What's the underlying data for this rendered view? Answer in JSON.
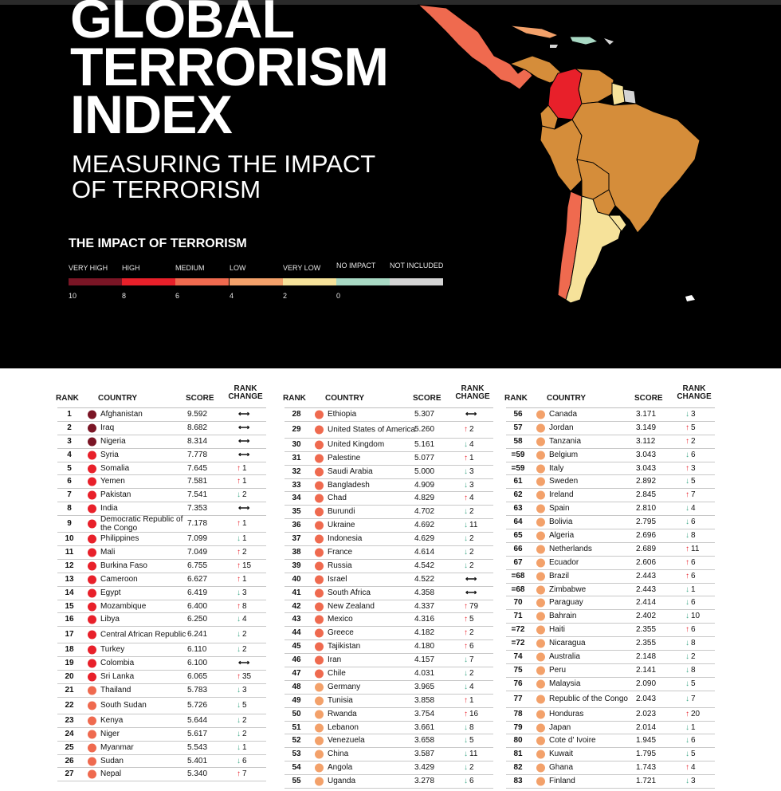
{
  "title_lines": [
    "GLOBAL",
    "TERRORISM",
    "INDEX"
  ],
  "subtitle_lines": [
    "MEASURING THE IMPACT",
    "OF TERRORISM"
  ],
  "legend": {
    "title": "THE IMPACT OF TERRORISM",
    "categories": [
      {
        "label": "VERY HIGH",
        "color": "#7a1525"
      },
      {
        "label": "HIGH",
        "color": "#e8202a"
      },
      {
        "label": "MEDIUM",
        "color": "#ef6a4f"
      },
      {
        "label": "LOW",
        "color": "#f3a16a"
      },
      {
        "label": "VERY LOW",
        "color": "#f6e29a"
      },
      {
        "label": "NO IMPACT",
        "color": "#a9d9c4"
      },
      {
        "label": "NOT INCLUDED",
        "color": "#d4d4d4"
      }
    ],
    "scale": [
      "10",
      "8",
      "6",
      "4",
      "2",
      "0"
    ]
  },
  "table_headers": {
    "rank": "RANK",
    "country": "COUNTRY",
    "score": "SCORE",
    "rank_change_1": "RANK",
    "rank_change_2": "CHANGE"
  },
  "columns": [
    [
      {
        "rank": "1",
        "country": "Afghanistan",
        "score": "9.592",
        "dir": "same",
        "change": ""
      },
      {
        "rank": "2",
        "country": "Iraq",
        "score": "8.682",
        "dir": "same",
        "change": ""
      },
      {
        "rank": "3",
        "country": "Nigeria",
        "score": "8.314",
        "dir": "same",
        "change": ""
      },
      {
        "rank": "4",
        "country": "Syria",
        "score": "7.778",
        "dir": "same",
        "change": ""
      },
      {
        "rank": "5",
        "country": "Somalia",
        "score": "7.645",
        "dir": "up",
        "change": "1"
      },
      {
        "rank": "6",
        "country": "Yemen",
        "score": "7.581",
        "dir": "up",
        "change": "1"
      },
      {
        "rank": "7",
        "country": "Pakistan",
        "score": "7.541",
        "dir": "down",
        "change": "2"
      },
      {
        "rank": "8",
        "country": "India",
        "score": "7.353",
        "dir": "same",
        "change": ""
      },
      {
        "rank": "9",
        "country": "Democratic Republic of the Congo",
        "score": "7.178",
        "dir": "up",
        "change": "1"
      },
      {
        "rank": "10",
        "country": "Philippines",
        "score": "7.099",
        "dir": "down",
        "change": "1"
      },
      {
        "rank": "11",
        "country": "Mali",
        "score": "7.049",
        "dir": "up",
        "change": "2"
      },
      {
        "rank": "12",
        "country": "Burkina Faso",
        "score": "6.755",
        "dir": "up",
        "change": "15"
      },
      {
        "rank": "13",
        "country": "Cameroon",
        "score": "6.627",
        "dir": "up",
        "change": "1"
      },
      {
        "rank": "14",
        "country": "Egypt",
        "score": "6.419",
        "dir": "down",
        "change": "3"
      },
      {
        "rank": "15",
        "country": "Mozambique",
        "score": "6.400",
        "dir": "up",
        "change": "8"
      },
      {
        "rank": "16",
        "country": "Libya",
        "score": "6.250",
        "dir": "down",
        "change": "4"
      },
      {
        "rank": "17",
        "country": "Central African Republic",
        "score": "6.241",
        "dir": "down",
        "change": "2"
      },
      {
        "rank": "18",
        "country": "Turkey",
        "score": "6.110",
        "dir": "down",
        "change": "2"
      },
      {
        "rank": "19",
        "country": "Colombia",
        "score": "6.100",
        "dir": "same",
        "change": ""
      },
      {
        "rank": "20",
        "country": "Sri Lanka",
        "score": "6.065",
        "dir": "up",
        "change": "35"
      },
      {
        "rank": "21",
        "country": "Thailand",
        "score": "5.783",
        "dir": "down",
        "change": "3"
      },
      {
        "rank": "22",
        "country": "South Sudan",
        "score": "5.726",
        "dir": "down",
        "change": "5"
      },
      {
        "rank": "23",
        "country": "Kenya",
        "score": "5.644",
        "dir": "down",
        "change": "2"
      },
      {
        "rank": "24",
        "country": "Niger",
        "score": "5.617",
        "dir": "down",
        "change": "2"
      },
      {
        "rank": "25",
        "country": "Myanmar",
        "score": "5.543",
        "dir": "down",
        "change": "1"
      },
      {
        "rank": "26",
        "country": "Sudan",
        "score": "5.401",
        "dir": "down",
        "change": "6"
      },
      {
        "rank": "27",
        "country": "Nepal",
        "score": "5.340",
        "dir": "up",
        "change": "7"
      }
    ],
    [
      {
        "rank": "28",
        "country": "Ethiopia",
        "score": "5.307",
        "dir": "same",
        "change": ""
      },
      {
        "rank": "29",
        "country": "United States of America",
        "score": "5.260",
        "dir": "up",
        "change": "2"
      },
      {
        "rank": "30",
        "country": "United Kingdom",
        "score": "5.161",
        "dir": "down",
        "change": "4"
      },
      {
        "rank": "31",
        "country": "Palestine",
        "score": "5.077",
        "dir": "up",
        "change": "1"
      },
      {
        "rank": "32",
        "country": "Saudi Arabia",
        "score": "5.000",
        "dir": "down",
        "change": "3"
      },
      {
        "rank": "33",
        "country": "Bangladesh",
        "score": "4.909",
        "dir": "down",
        "change": "3"
      },
      {
        "rank": "34",
        "country": "Chad",
        "score": "4.829",
        "dir": "up",
        "change": "4"
      },
      {
        "rank": "35",
        "country": "Burundi",
        "score": "4.702",
        "dir": "down",
        "change": "2"
      },
      {
        "rank": "36",
        "country": "Ukraine",
        "score": "4.692",
        "dir": "down",
        "change": "11"
      },
      {
        "rank": "37",
        "country": "Indonesia",
        "score": "4.629",
        "dir": "down",
        "change": "2"
      },
      {
        "rank": "38",
        "country": "France",
        "score": "4.614",
        "dir": "down",
        "change": "2"
      },
      {
        "rank": "39",
        "country": "Russia",
        "score": "4.542",
        "dir": "down",
        "change": "2"
      },
      {
        "rank": "40",
        "country": "Israel",
        "score": "4.522",
        "dir": "same",
        "change": ""
      },
      {
        "rank": "41",
        "country": "South Africa",
        "score": "4.358",
        "dir": "same",
        "change": ""
      },
      {
        "rank": "42",
        "country": "New Zealand",
        "score": "4.337",
        "dir": "up",
        "change": "79"
      },
      {
        "rank": "43",
        "country": "Mexico",
        "score": "4.316",
        "dir": "up",
        "change": "5"
      },
      {
        "rank": "44",
        "country": "Greece",
        "score": "4.182",
        "dir": "up",
        "change": "2"
      },
      {
        "rank": "45",
        "country": "Tajikistan",
        "score": "4.180",
        "dir": "up",
        "change": "6"
      },
      {
        "rank": "46",
        "country": "Iran",
        "score": "4.157",
        "dir": "down",
        "change": "7"
      },
      {
        "rank": "47",
        "country": "Chile",
        "score": "4.031",
        "dir": "down",
        "change": "2"
      },
      {
        "rank": "48",
        "country": "Germany",
        "score": "3.965",
        "dir": "down",
        "change": "4"
      },
      {
        "rank": "49",
        "country": "Tunisia",
        "score": "3.858",
        "dir": "up",
        "change": "1"
      },
      {
        "rank": "50",
        "country": "Rwanda",
        "score": "3.754",
        "dir": "up",
        "change": "16"
      },
      {
        "rank": "51",
        "country": "Lebanon",
        "score": "3.661",
        "dir": "down",
        "change": "8"
      },
      {
        "rank": "52",
        "country": "Venezuela",
        "score": "3.658",
        "dir": "down",
        "change": "5"
      },
      {
        "rank": "53",
        "country": "China",
        "score": "3.587",
        "dir": "down",
        "change": "11"
      },
      {
        "rank": "54",
        "country": "Angola",
        "score": "3.429",
        "dir": "down",
        "change": "2"
      },
      {
        "rank": "55",
        "country": "Uganda",
        "score": "3.278",
        "dir": "down",
        "change": "6"
      }
    ],
    [
      {
        "rank": "56",
        "country": "Canada",
        "score": "3.171",
        "dir": "down",
        "change": "3"
      },
      {
        "rank": "57",
        "country": "Jordan",
        "score": "3.149",
        "dir": "up",
        "change": "5"
      },
      {
        "rank": "58",
        "country": "Tanzania",
        "score": "3.112",
        "dir": "up",
        "change": "2"
      },
      {
        "rank": "=59",
        "country": "Belgium",
        "score": "3.043",
        "dir": "down",
        "change": "6"
      },
      {
        "rank": "=59",
        "country": "Italy",
        "score": "3.043",
        "dir": "up",
        "change": "3"
      },
      {
        "rank": "61",
        "country": "Sweden",
        "score": "2.892",
        "dir": "down",
        "change": "5"
      },
      {
        "rank": "62",
        "country": "Ireland",
        "score": "2.845",
        "dir": "up",
        "change": "7"
      },
      {
        "rank": "63",
        "country": "Spain",
        "score": "2.810",
        "dir": "down",
        "change": "4"
      },
      {
        "rank": "64",
        "country": "Bolivia",
        "score": "2.795",
        "dir": "down",
        "change": "6"
      },
      {
        "rank": "65",
        "country": "Algeria",
        "score": "2.696",
        "dir": "down",
        "change": "8"
      },
      {
        "rank": "66",
        "country": "Netherlands",
        "score": "2.689",
        "dir": "up",
        "change": "11"
      },
      {
        "rank": "67",
        "country": "Ecuador",
        "score": "2.606",
        "dir": "up",
        "change": "6"
      },
      {
        "rank": "=68",
        "country": "Brazil",
        "score": "2.443",
        "dir": "up",
        "change": "6"
      },
      {
        "rank": "=68",
        "country": "Zimbabwe",
        "score": "2.443",
        "dir": "down",
        "change": "1"
      },
      {
        "rank": "70",
        "country": "Paraguay",
        "score": "2.414",
        "dir": "down",
        "change": "6"
      },
      {
        "rank": "71",
        "country": "Bahrain",
        "score": "2.402",
        "dir": "down",
        "change": "10"
      },
      {
        "rank": "=72",
        "country": "Haiti",
        "score": "2.355",
        "dir": "up",
        "change": "6"
      },
      {
        "rank": "=72",
        "country": "Nicaragua",
        "score": "2.355",
        "dir": "down",
        "change": "8"
      },
      {
        "rank": "74",
        "country": "Australia",
        "score": "2.148",
        "dir": "down",
        "change": "2"
      },
      {
        "rank": "75",
        "country": "Peru",
        "score": "2.141",
        "dir": "down",
        "change": "8"
      },
      {
        "rank": "76",
        "country": "Malaysia",
        "score": "2.090",
        "dir": "down",
        "change": "5"
      },
      {
        "rank": "77",
        "country": "Republic of the Congo",
        "score": "2.043",
        "dir": "down",
        "change": "7"
      },
      {
        "rank": "78",
        "country": "Honduras",
        "score": "2.023",
        "dir": "up",
        "change": "20"
      },
      {
        "rank": "79",
        "country": "Japan",
        "score": "2.014",
        "dir": "down",
        "change": "1"
      },
      {
        "rank": "80",
        "country": "Cote d' Ivoire",
        "score": "1.945",
        "dir": "down",
        "change": "6"
      },
      {
        "rank": "81",
        "country": "Kuwait",
        "score": "1.795",
        "dir": "down",
        "change": "5"
      },
      {
        "rank": "82",
        "country": "Ghana",
        "score": "1.743",
        "dir": "up",
        "change": "4"
      },
      {
        "rank": "83",
        "country": "Finland",
        "score": "1.721",
        "dir": "down",
        "change": "3"
      }
    ]
  ]
}
